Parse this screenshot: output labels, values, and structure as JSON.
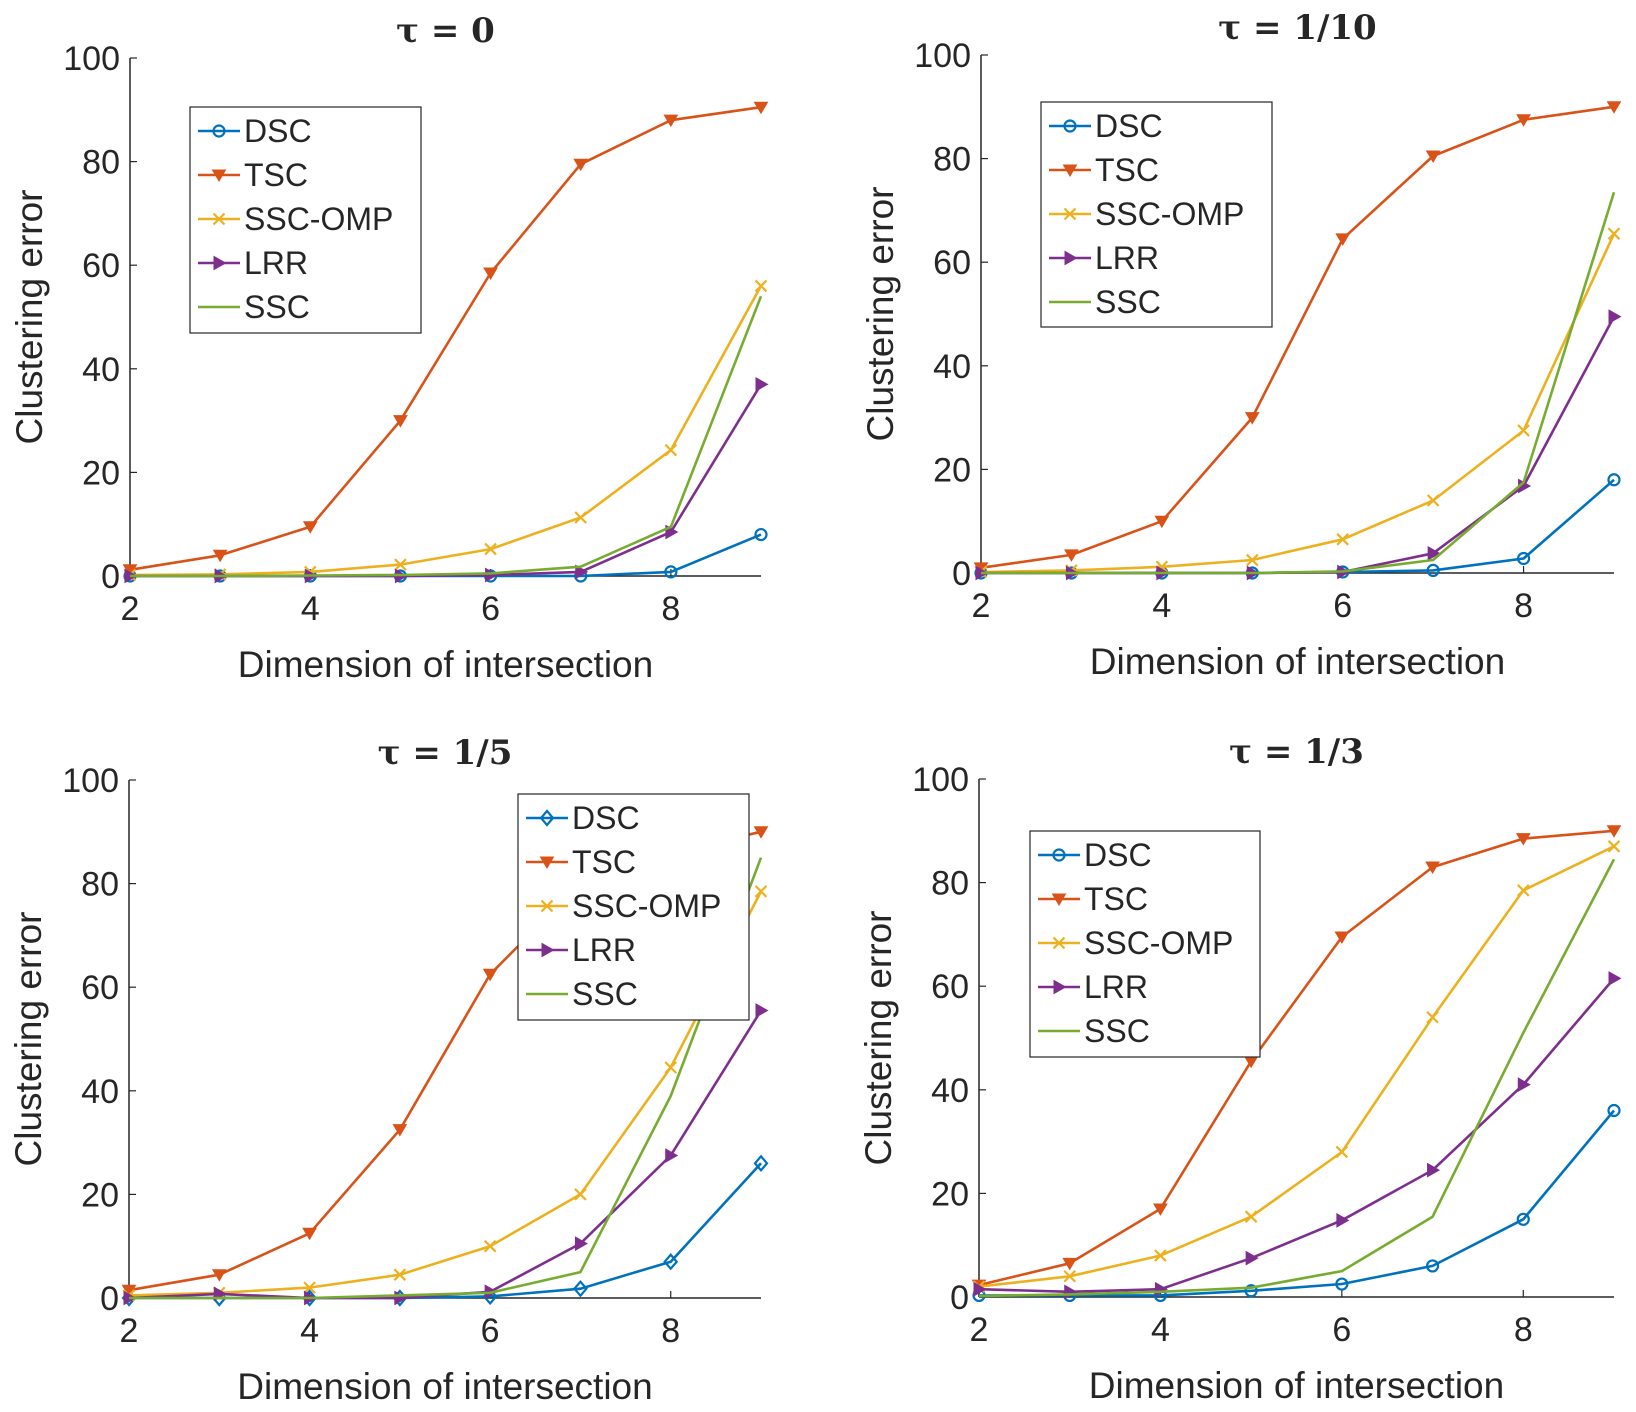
{
  "chart_data": [
    {
      "type": "line",
      "title": "τ = 0",
      "xlabel": "Dimension of intersection",
      "ylabel": "Clustering error",
      "xlim": [
        2,
        9
      ],
      "ylim": [
        0,
        100
      ],
      "xticks": [
        2,
        4,
        6,
        8
      ],
      "yticks": [
        0,
        20,
        40,
        60,
        80,
        100
      ],
      "grid": false,
      "legend_position": "top-left",
      "x": [
        2,
        3,
        4,
        5,
        6,
        7,
        8,
        9
      ],
      "series": [
        {
          "name": "DSC",
          "color": "#0072BD",
          "marker": "circle",
          "values": [
            0,
            0,
            0,
            0,
            0,
            0,
            0.8,
            8
          ]
        },
        {
          "name": "TSC",
          "color": "#D95319",
          "marker": "triangle-down",
          "values": [
            1.2,
            4,
            9.5,
            30,
            58.5,
            79.5,
            88,
            90.5
          ]
        },
        {
          "name": "SSC-OMP",
          "color": "#EDB120",
          "marker": "x",
          "values": [
            0.2,
            0.3,
            0.8,
            2.2,
            5.2,
            11.3,
            24.3,
            56
          ]
        },
        {
          "name": "LRR",
          "color": "#7E2F8E",
          "marker": "triangle-right",
          "values": [
            0,
            0,
            0,
            0,
            0.2,
            0.8,
            8.5,
            37
          ]
        },
        {
          "name": "SSC",
          "color": "#77AC30",
          "marker": "none",
          "values": [
            0,
            0,
            0.1,
            0.2,
            0.5,
            1.8,
            9.5,
            54
          ]
        }
      ]
    },
    {
      "type": "line",
      "title": "τ = 1/10",
      "xlabel": "Dimension of intersection",
      "ylabel": "Clustering error",
      "xlim": [
        2,
        9
      ],
      "ylim": [
        0,
        100
      ],
      "xticks": [
        2,
        4,
        6,
        8
      ],
      "yticks": [
        0,
        20,
        40,
        60,
        80,
        100
      ],
      "grid": false,
      "legend_position": "top-left",
      "x": [
        2,
        3,
        4,
        5,
        6,
        7,
        8,
        9
      ],
      "series": [
        {
          "name": "DSC",
          "color": "#0072BD",
          "marker": "circle",
          "values": [
            0,
            0,
            0,
            0,
            0.2,
            0.5,
            2.8,
            18
          ]
        },
        {
          "name": "TSC",
          "color": "#D95319",
          "marker": "triangle-down",
          "values": [
            1,
            3.5,
            10,
            30,
            64.5,
            80.5,
            87.5,
            90
          ]
        },
        {
          "name": "SSC-OMP",
          "color": "#EDB120",
          "marker": "x",
          "values": [
            0.2,
            0.5,
            1.2,
            2.5,
            6.5,
            14,
            27.5,
            65.5
          ]
        },
        {
          "name": "LRR",
          "color": "#7E2F8E",
          "marker": "triangle-right",
          "values": [
            0,
            0,
            0,
            0,
            0.2,
            3.8,
            16.8,
            49.5
          ]
        },
        {
          "name": "SSC",
          "color": "#77AC30",
          "marker": "none",
          "values": [
            0,
            0,
            0,
            0,
            0.3,
            2.5,
            17.5,
            73.5
          ]
        }
      ]
    },
    {
      "type": "line",
      "title": "τ = 1/5",
      "xlabel": "Dimension of intersection",
      "ylabel": "Clustering error",
      "xlim": [
        2,
        9
      ],
      "ylim": [
        0,
        100
      ],
      "xticks": [
        2,
        4,
        6,
        8
      ],
      "yticks": [
        0,
        20,
        40,
        60,
        80,
        100
      ],
      "grid": false,
      "legend_position": "top-right",
      "x": [
        2,
        3,
        4,
        5,
        6,
        7,
        8,
        9
      ],
      "series": [
        {
          "name": "DSC",
          "color": "#0072BD",
          "marker": "diamond",
          "values": [
            0,
            0,
            0,
            0,
            0.3,
            1.8,
            7,
            26
          ]
        },
        {
          "name": "TSC",
          "color": "#D95319",
          "marker": "triangle-down",
          "values": [
            1.5,
            4.5,
            12.5,
            32.5,
            62.5,
            80,
            86,
            90
          ]
        },
        {
          "name": "SSC-OMP",
          "color": "#EDB120",
          "marker": "x",
          "values": [
            0.5,
            1,
            2,
            4.5,
            10,
            20,
            44.5,
            78.5
          ]
        },
        {
          "name": "LRR",
          "color": "#7E2F8E",
          "marker": "triangle-right",
          "values": [
            0,
            0.8,
            0,
            0,
            1.2,
            10.5,
            27.5,
            55.5
          ]
        },
        {
          "name": "SSC",
          "color": "#77AC30",
          "marker": "none",
          "values": [
            0,
            0,
            0,
            0.5,
            1,
            5,
            39,
            85
          ]
        }
      ]
    },
    {
      "type": "line",
      "title": "τ = 1/3",
      "xlabel": "Dimension of intersection",
      "ylabel": "Clustering error",
      "xlim": [
        2,
        9
      ],
      "ylim": [
        0,
        100
      ],
      "xticks": [
        2,
        4,
        6,
        8
      ],
      "yticks": [
        0,
        20,
        40,
        60,
        80,
        100
      ],
      "grid": false,
      "legend_position": "top-left",
      "x": [
        2,
        3,
        4,
        5,
        6,
        7,
        8,
        9
      ],
      "series": [
        {
          "name": "DSC",
          "color": "#0072BD",
          "marker": "circle",
          "values": [
            0.3,
            0.3,
            0.3,
            1.2,
            2.5,
            6,
            15,
            36
          ]
        },
        {
          "name": "TSC",
          "color": "#D95319",
          "marker": "triangle-down",
          "values": [
            2.3,
            6.5,
            17,
            45.5,
            69.5,
            83,
            88.5,
            90
          ]
        },
        {
          "name": "SSC-OMP",
          "color": "#EDB120",
          "marker": "x",
          "values": [
            2,
            4,
            8,
            15.5,
            28,
            54,
            78.5,
            87
          ]
        },
        {
          "name": "LRR",
          "color": "#7E2F8E",
          "marker": "triangle-right",
          "values": [
            1.5,
            1,
            1.5,
            7.5,
            14.8,
            24.5,
            41,
            61.5
          ]
        },
        {
          "name": "SSC",
          "color": "#77AC30",
          "marker": "none",
          "values": [
            0.2,
            0.5,
            1,
            1.8,
            5,
            15.5,
            51,
            84.5
          ]
        }
      ]
    }
  ]
}
